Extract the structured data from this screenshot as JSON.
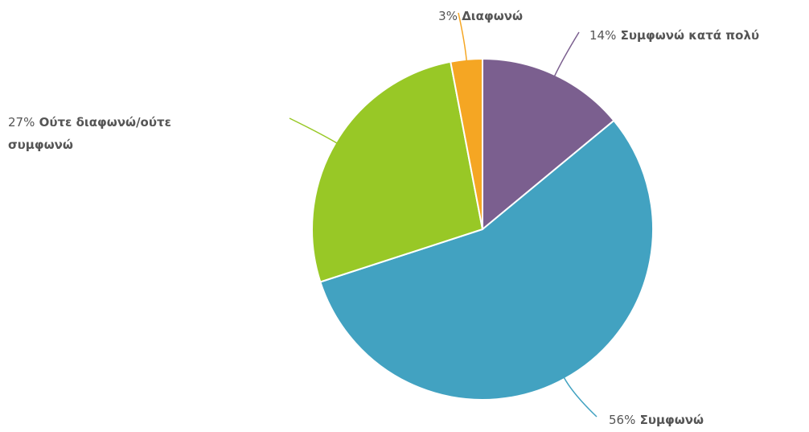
{
  "chart_data": {
    "type": "pie",
    "categories": [
      "Συμφωνώ κατά πολύ",
      "Συμφωνώ",
      "Ούτε διαφωνώ/ούτε συμφωνώ",
      "Διαφωνώ"
    ],
    "values": [
      14,
      56,
      27,
      3
    ],
    "value_labels": [
      "14%",
      "56%",
      "27%",
      "3%"
    ],
    "colors": [
      "#7b5f8f",
      "#42a2c1",
      "#98c826",
      "#f5a623"
    ]
  }
}
